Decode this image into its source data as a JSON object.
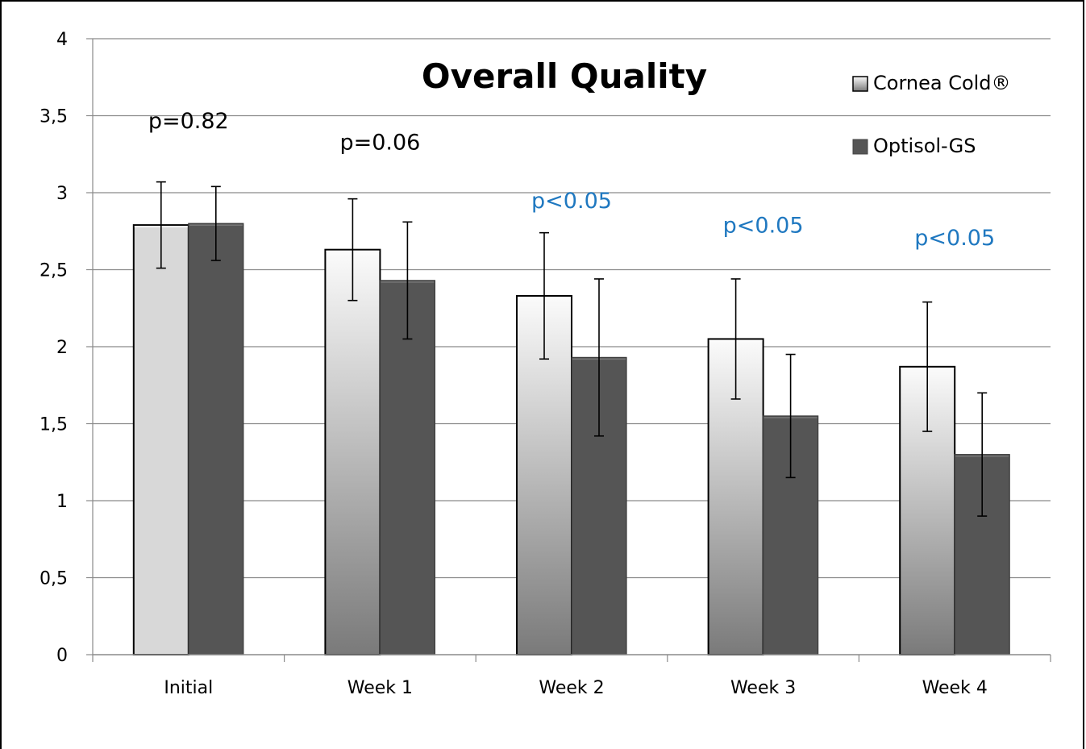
{
  "chart_data": {
    "type": "bar",
    "title": "Overall Quality",
    "categories": [
      "Initial",
      "Week 1",
      "Week 2",
      "Week 3",
      "Week 4"
    ],
    "series": [
      {
        "name": "Cornea Cold®",
        "values": [
          2.79,
          2.63,
          2.33,
          2.05,
          1.87
        ],
        "errors": [
          0.28,
          0.33,
          0.41,
          0.39,
          0.42
        ],
        "color": "#d8d8d8"
      },
      {
        "name": "Optisol-GS",
        "values": [
          2.8,
          2.43,
          1.93,
          1.55,
          1.3
        ],
        "errors": [
          0.24,
          0.38,
          0.51,
          0.4,
          0.4
        ],
        "color": "#555555"
      }
    ],
    "yticks": [
      "0",
      "0,5",
      "1",
      "1,5",
      "2",
      "2,5",
      "3",
      "3,5",
      "4"
    ],
    "ylim": [
      0,
      4
    ],
    "grid": true,
    "legend_position": "top-right",
    "annotations": [
      {
        "text": "p=0.82",
        "category": "Initial",
        "y": 3.42,
        "color": "#000000"
      },
      {
        "text": "p=0.06",
        "category": "Week 1",
        "y": 3.28,
        "color": "#000000"
      },
      {
        "text": "p<0.05",
        "category": "Week 2",
        "y": 2.9,
        "color": "#1f78c0"
      },
      {
        "text": "p<0.05",
        "category": "Week 3",
        "y": 2.74,
        "color": "#1f78c0"
      },
      {
        "text": "p<0.05",
        "category": "Week 4",
        "y": 2.66,
        "color": "#1f78c0"
      }
    ]
  }
}
